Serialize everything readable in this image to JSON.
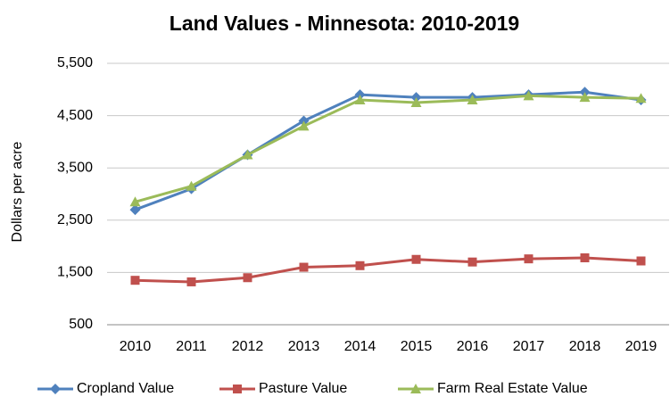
{
  "chart_data": {
    "type": "line",
    "title": "Land Values - Minnesota: 2010-2019",
    "y_label": "Dollars per acre",
    "categories": [
      "2010",
      "2011",
      "2012",
      "2013",
      "2014",
      "2015",
      "2016",
      "2017",
      "2018",
      "2019"
    ],
    "series": [
      {
        "name": "Cropland Value",
        "color": "#4f81bd",
        "marker": "diamond",
        "values": [
          2700,
          3100,
          3750,
          4400,
          4900,
          4850,
          4850,
          4900,
          4950,
          4800
        ]
      },
      {
        "name": "Pasture Value",
        "color": "#c0504d",
        "marker": "square",
        "values": [
          1350,
          1320,
          1400,
          1600,
          1630,
          1750,
          1700,
          1760,
          1780,
          1720
        ]
      },
      {
        "name": "Farm Real Estate Value",
        "color": "#9bbb59",
        "marker": "triangle",
        "values": [
          2850,
          3150,
          3750,
          4300,
          4800,
          4750,
          4800,
          4880,
          4850,
          4830
        ]
      }
    ],
    "ylim": [
      500,
      5500
    ],
    "yticks": [
      500,
      {
        "value": 1500,
        "label": "1,500"
      },
      {
        "value": 2500,
        "label": "2,500"
      },
      {
        "value": 3500,
        "label": "3,500"
      },
      {
        "value": 4500,
        "label": "4,500"
      },
      {
        "value": 5500,
        "label": "5,500"
      }
    ],
    "grid": true,
    "legend": "bottom"
  }
}
